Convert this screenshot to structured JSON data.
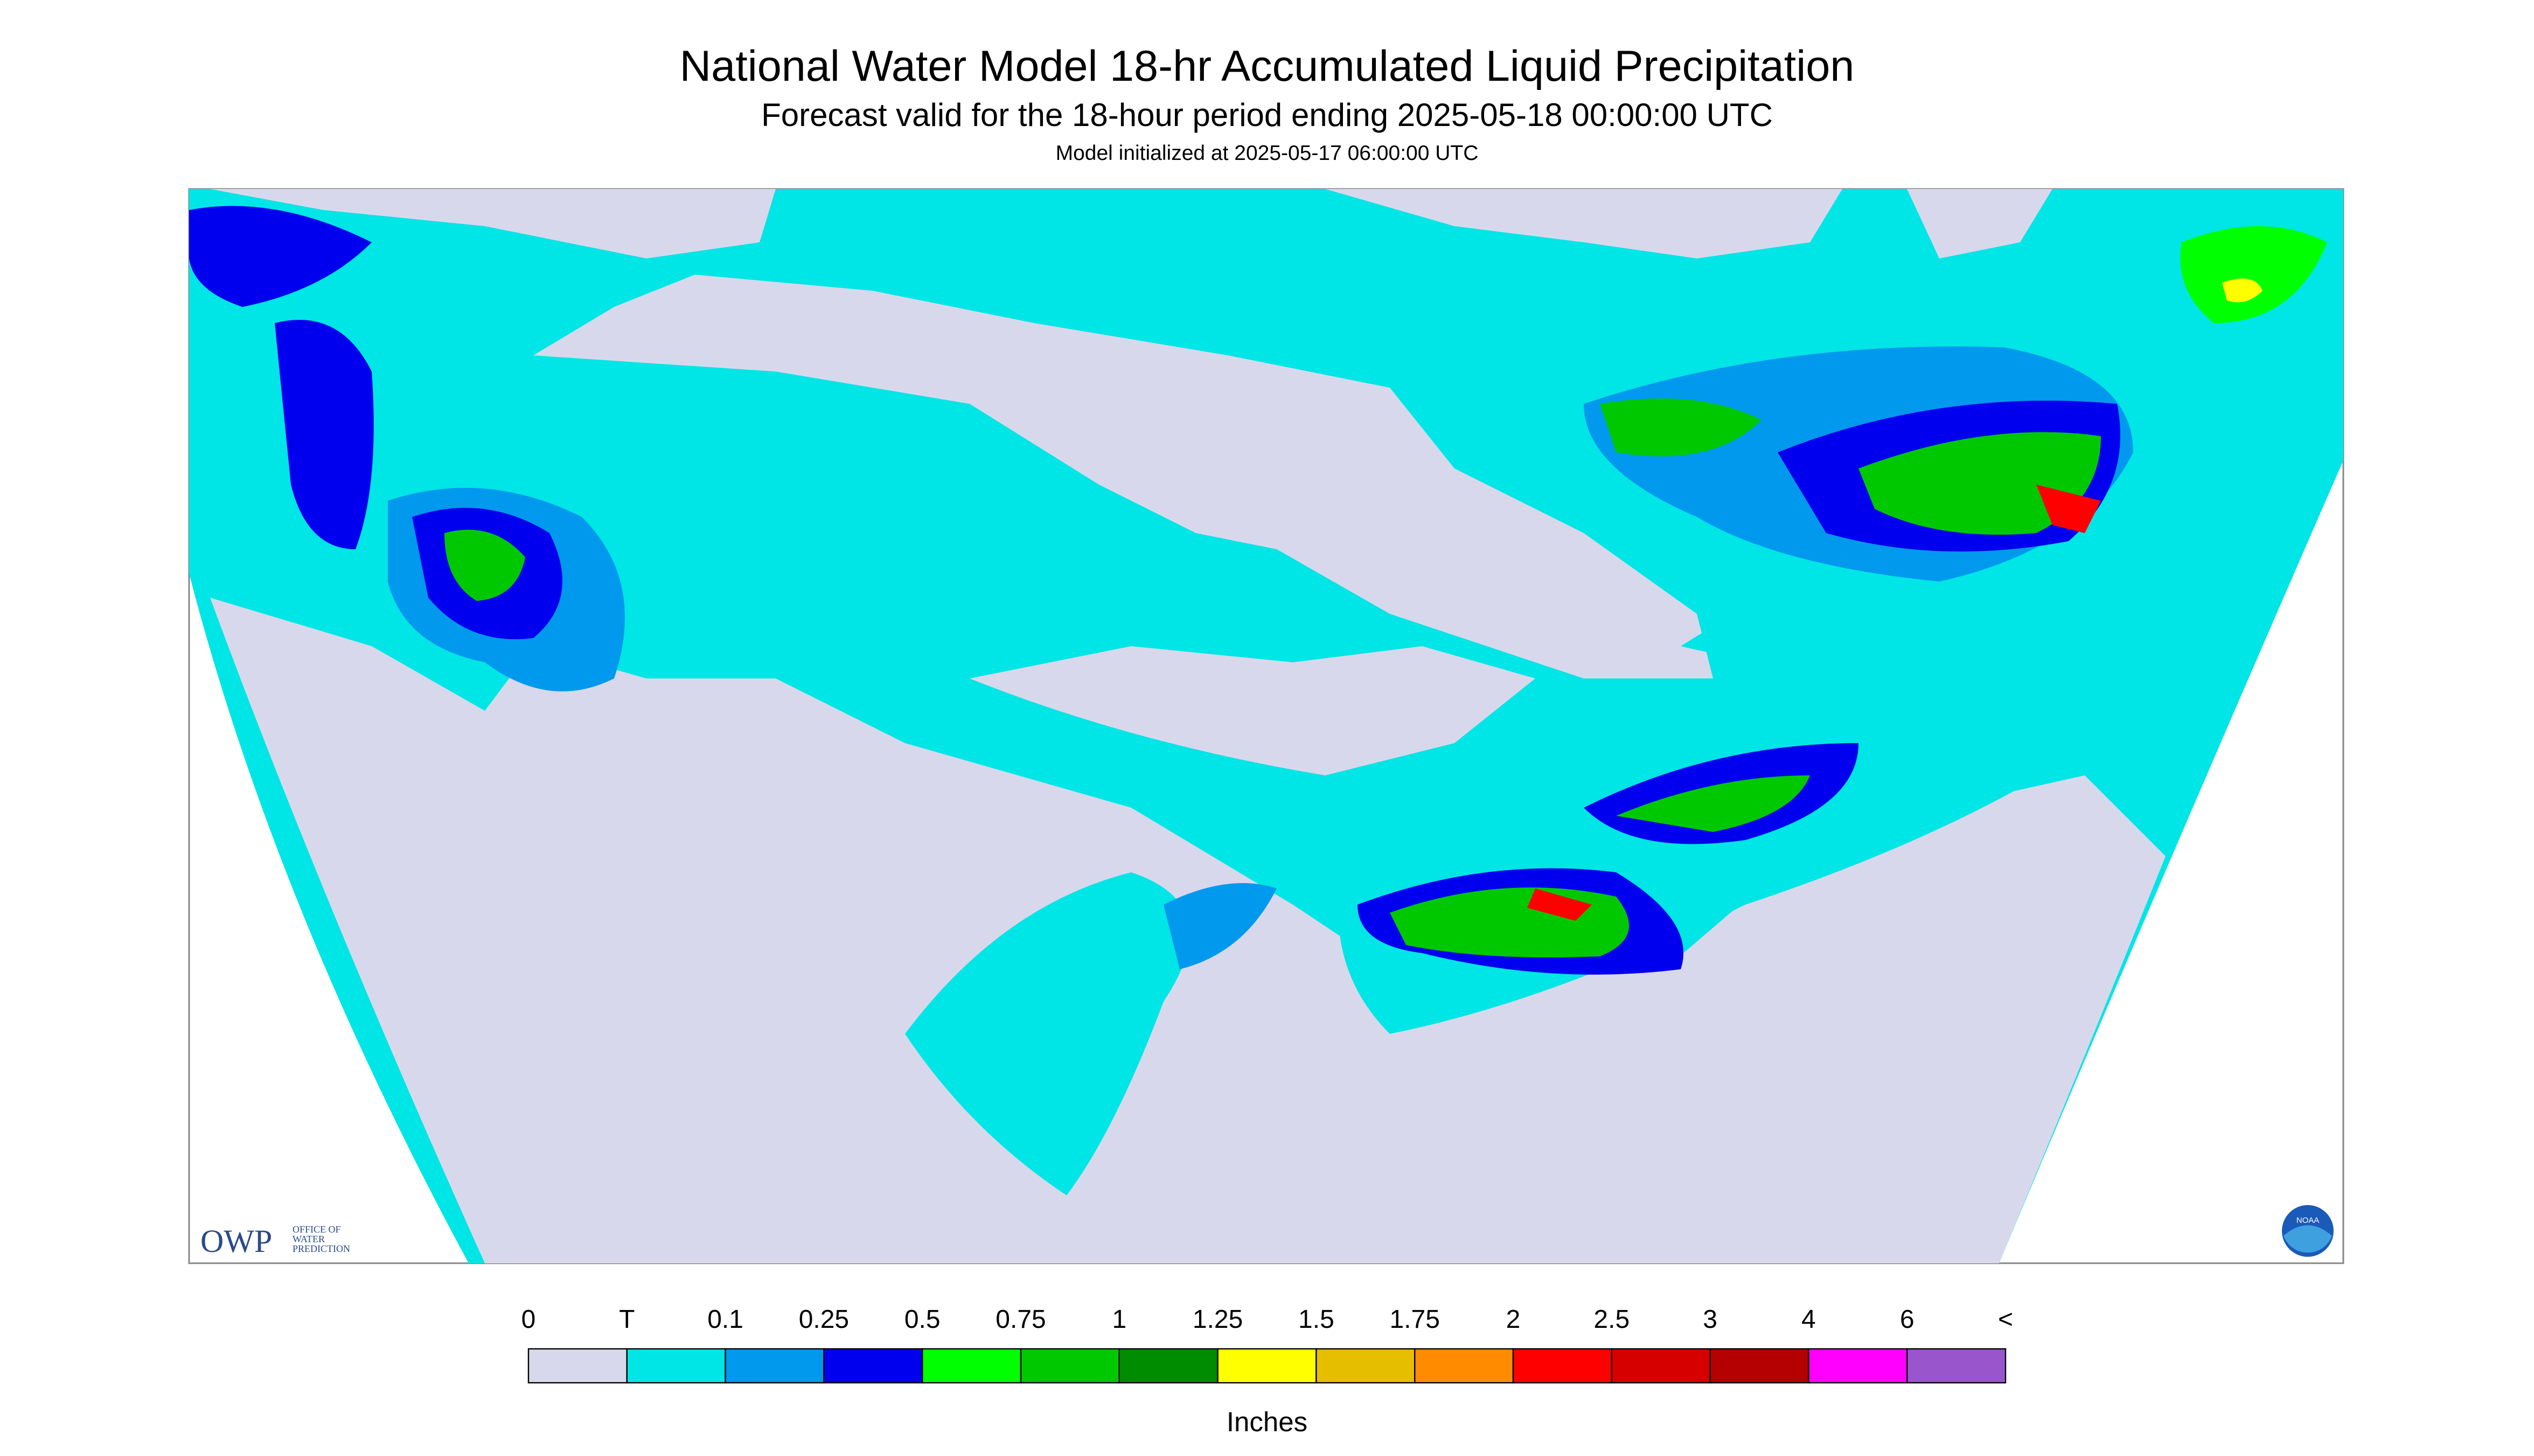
{
  "header": {
    "title": "National Water Model 18-hr Accumulated Liquid Precipitation",
    "subtitle": "Forecast valid for the 18-hour period ending 2025-05-18 00:00:00 UTC",
    "initialized": "Model initialized at 2025-05-17 06:00:00 UTC"
  },
  "legend": {
    "labels": [
      0,
      "T",
      0.1,
      0.25,
      0.5,
      0.75,
      1,
      1.25,
      1.5,
      1.75,
      2,
      2.5,
      3,
      4,
      6,
      "<"
    ],
    "colors": [
      "#d8d8ec",
      "#00e5e5",
      "#0099ee",
      "#0000ee",
      "#00ff00",
      "#00c800",
      "#008c00",
      "#ffff00",
      "#e6be00",
      "#ff8c00",
      "#ff0000",
      "#d70000",
      "#b40000",
      "#ff00ff",
      "#9955cc"
    ],
    "unit": "Inches"
  },
  "logos": {
    "owp": "OWP",
    "owp_full": [
      "OFFICE OF",
      "WATER",
      "PREDICTION"
    ],
    "noaa": "NOAA"
  }
}
